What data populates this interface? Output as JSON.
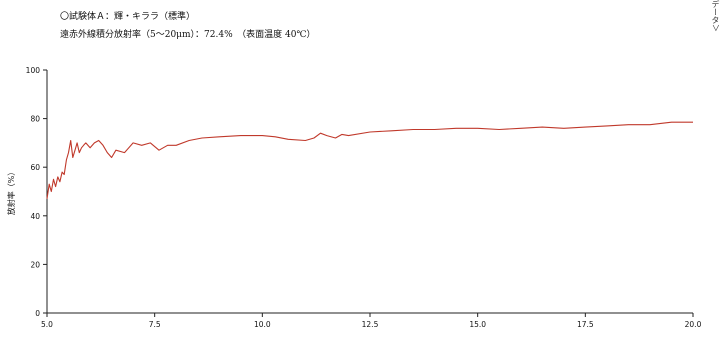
{
  "header": {
    "line1": "〇試験体Ａ：輝・キララ（標準）",
    "line2": "遠赤外線積分放射率（5〜20μm）：72.4%　（表面温度 40℃）",
    "side_note": "データ＞"
  },
  "chart_data": {
    "type": "line",
    "title": "",
    "xlabel": "",
    "ylabel": "放射率（%）",
    "xlim": [
      5.0,
      20.0
    ],
    "ylim": [
      0,
      100
    ],
    "xticks": [
      5.0,
      7.5,
      10.0,
      12.5,
      15.0,
      17.5,
      20.0
    ],
    "xtick_labels": [
      "5.0",
      "7.5",
      "10.0",
      "12.5",
      "15.0",
      "17.5",
      "20.0"
    ],
    "yticks": [
      0,
      20,
      40,
      60,
      80,
      100
    ],
    "ytick_labels": [
      "0",
      "20",
      "40",
      "60",
      "80",
      "100"
    ],
    "grid": false,
    "line_color": "#c0392b",
    "series": [
      {
        "x": [
          5.0,
          5.05,
          5.1,
          5.15,
          5.2,
          5.25,
          5.3,
          5.35,
          5.4,
          5.45,
          5.5,
          5.55,
          5.6,
          5.65,
          5.7,
          5.75,
          5.8,
          5.85,
          5.9,
          6.0,
          6.1,
          6.2,
          6.3,
          6.4,
          6.5,
          6.6,
          6.8,
          7.0,
          7.2,
          7.4,
          7.6,
          7.8,
          8.0,
          8.3,
          8.6,
          9.0,
          9.5,
          10.0,
          10.3,
          10.6,
          11.0,
          11.2,
          11.35,
          11.5,
          11.7,
          11.85,
          12.0,
          12.5,
          13.0,
          13.5,
          14.0,
          14.5,
          15.0,
          15.5,
          16.0,
          16.5,
          17.0,
          17.5,
          18.0,
          18.5,
          19.0,
          19.5,
          20.0
        ],
        "y": [
          47,
          53,
          50,
          55,
          52,
          56,
          54,
          58,
          57,
          63,
          66,
          71,
          64,
          67,
          70,
          66,
          68,
          69,
          70,
          68,
          70,
          71,
          69,
          66,
          64,
          67,
          66,
          70,
          69,
          70,
          67,
          69,
          69,
          71,
          72,
          72.5,
          73,
          73,
          72.5,
          71.5,
          71,
          72,
          74,
          73,
          72,
          73.5,
          73,
          74.5,
          75,
          75.5,
          75.5,
          76,
          76,
          75.5,
          76,
          76.5,
          76,
          76.5,
          77,
          77.5,
          77.5,
          78.5,
          78.5
        ]
      }
    ]
  }
}
